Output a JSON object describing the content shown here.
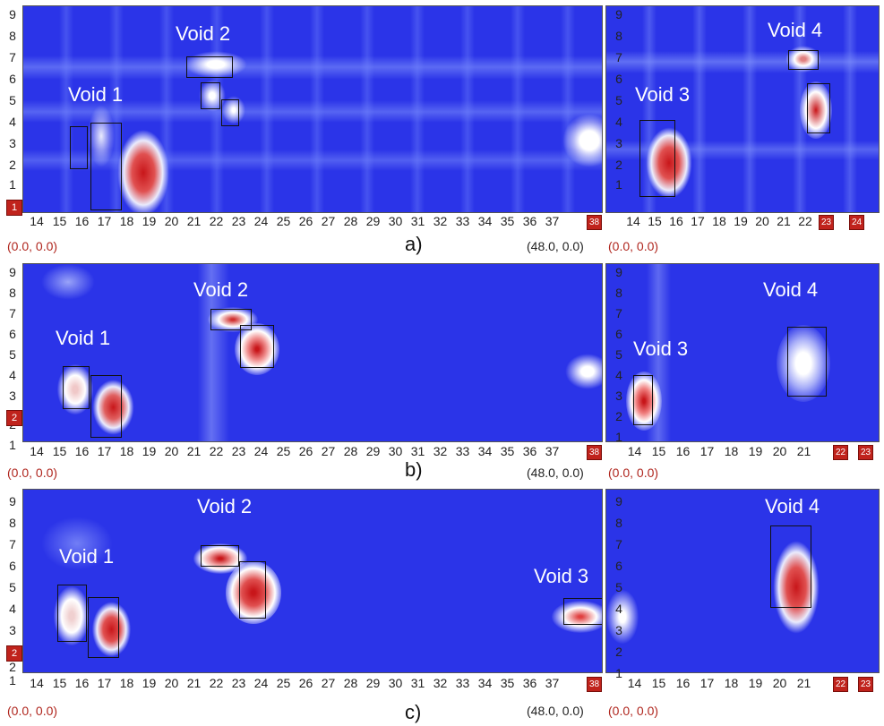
{
  "y_ticks": [
    "9",
    "8",
    "7",
    "6",
    "5",
    "4",
    "3",
    "2",
    "1"
  ],
  "x_ticks_left": [
    "14",
    "15",
    "16",
    "17",
    "18",
    "19",
    "20",
    "21",
    "22",
    "23",
    "24",
    "25",
    "26",
    "27",
    "28",
    "29",
    "30",
    "31",
    "32",
    "33",
    "34",
    "35",
    "36",
    "37"
  ],
  "x_ticks_right": [
    "14",
    "15",
    "16",
    "17",
    "18",
    "19",
    "20",
    "21",
    "22"
  ],
  "colors": {
    "scan_bg": "#2b34e8",
    "void_hot": "#c8161a",
    "badge": "#c0231c",
    "coord": "#b0261e"
  },
  "panels": [
    {
      "caption": "a)",
      "badge": "1",
      "coord_left": "(0.0, 0.0)",
      "coord_mid": "(48.0, 0.0)",
      "coord_right": "(0.0, 0.0)",
      "end_badge_left": "38",
      "end_badges_right": [
        "23",
        "24"
      ],
      "right_last_tick": "22",
      "voids": [
        "Void 1",
        "Void 2",
        "Void 3",
        "Void 4"
      ]
    },
    {
      "caption": "b)",
      "badge": "2",
      "coord_left": "(0.0, 0.0)",
      "coord_mid": "(48.0, 0.0)",
      "coord_right": "(0.0, 0.0)",
      "end_badge_left": "38",
      "end_badges_right": [
        "22",
        "23"
      ],
      "right_last_tick": "21",
      "voids": [
        "Void 1",
        "Void 2",
        "Void 3",
        "Void 4"
      ]
    },
    {
      "caption": "c)",
      "badge": "2",
      "coord_left": "(0.0, 0.0)",
      "coord_mid": "(48.0, 0.0)",
      "coord_right": "(0.0, 0.0)",
      "end_badge_left": "38",
      "end_badges_right": [
        "22",
        "23"
      ],
      "right_last_tick": "21",
      "voids": [
        "Void 1",
        "Void 2",
        "Void 3",
        "Void 4"
      ]
    }
  ]
}
